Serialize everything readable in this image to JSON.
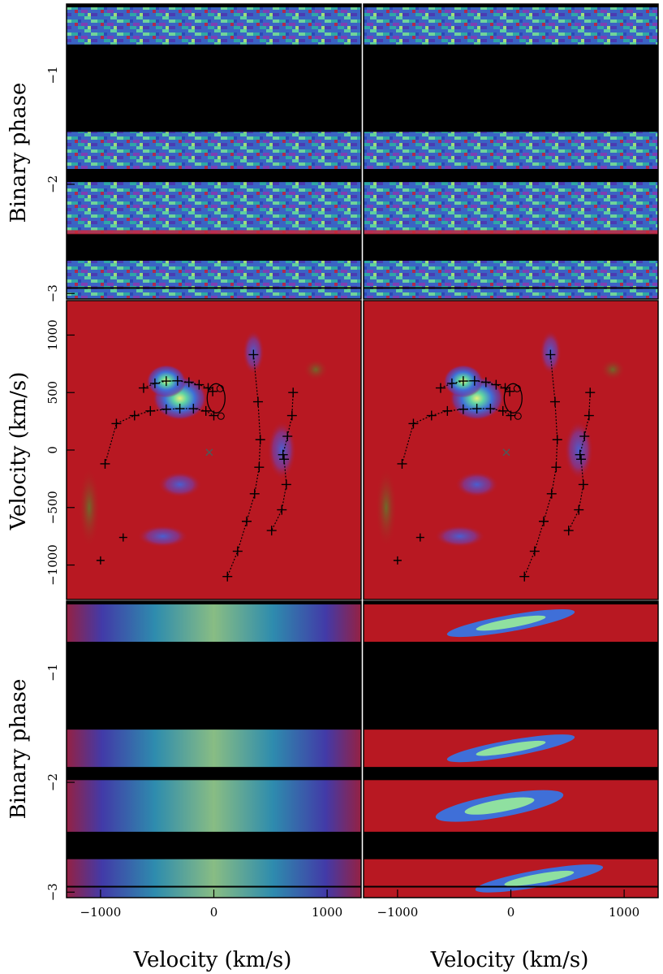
{
  "chart_data": {
    "type": "heatmap",
    "layout": "3 rows x 2 columns of panels",
    "panels": [
      {
        "id": "trailed-observed",
        "kind": "trailed spectra",
        "xlim": [
          -1300,
          1300
        ],
        "ylabel": "Binary phase",
        "yticks": [
          -1,
          -2,
          -3
        ],
        "ylim": [
          -3.05,
          -0.35
        ],
        "data_bands": [
          [
            -0.38,
            -0.72
          ],
          [
            -1.52,
            -1.86
          ],
          [
            -1.98,
            -2.45
          ],
          [
            -2.7,
            -3.05
          ]
        ],
        "colormap": "noise"
      },
      {
        "id": "trailed-observed-right",
        "kind": "trailed spectra",
        "xlim": [
          -1300,
          1300
        ],
        "ylim": [
          -3.05,
          -0.35
        ],
        "data_bands": [
          [
            -0.38,
            -0.72
          ],
          [
            -1.52,
            -1.86
          ],
          [
            -1.98,
            -2.45
          ],
          [
            -2.7,
            -3.05
          ]
        ],
        "colormap": "noise"
      },
      {
        "id": "doppler-map-left",
        "kind": "Doppler tomogram",
        "xlim": [
          -1300,
          1300
        ],
        "ylim": [
          -1300,
          1300
        ],
        "ylabel": "Velocity (km/s)",
        "yticks": [
          1000,
          500,
          0,
          -500,
          -1000
        ]
      },
      {
        "id": "doppler-map-right",
        "kind": "Doppler tomogram",
        "xlim": [
          -1300,
          1300
        ],
        "ylim": [
          -1300,
          1300
        ]
      },
      {
        "id": "trailed-model-left",
        "kind": "model trailed spectra",
        "xlim": [
          -1300,
          1300
        ],
        "ylim": [
          -3.05,
          -0.35
        ],
        "ylabel": "Binary phase",
        "yticks": [
          -1,
          -2,
          -3
        ]
      },
      {
        "id": "trailed-model-right",
        "kind": "model trailed spectra",
        "xlim": [
          -1300,
          1300
        ],
        "ylim": [
          -3.05,
          -0.35
        ]
      }
    ],
    "xticks": [
      -1000,
      0,
      1000
    ],
    "xlabel_left": "Velocity (km/s)",
    "xlabel_right": "Velocity (km/s)",
    "ylabel_top": "Binary phase",
    "ylabel_middle": "Velocity (km/s)",
    "ylabel_bottom": "Binary phase",
    "tick_labels": {
      "phase": [
        "−1",
        "−2",
        "−3"
      ],
      "velocity_y": [
        "1000",
        "500",
        "0",
        "−500",
        "−1000"
      ],
      "velocity_x": [
        "−1000",
        "0",
        "1000"
      ]
    },
    "trajectories": {
      "stream_upper": [
        [
          -620,
          540
        ],
        [
          -520,
          580
        ],
        [
          -420,
          600
        ],
        [
          -320,
          602
        ],
        [
          -220,
          590
        ],
        [
          -130,
          568
        ],
        [
          -50,
          540
        ],
        [
          -10,
          510
        ]
      ],
      "stream_lower": [
        [
          -1000,
          -960
        ],
        [
          -800,
          -760
        ],
        [
          -960,
          -120
        ],
        [
          -860,
          230
        ],
        [
          -700,
          300
        ],
        [
          -560,
          340
        ],
        [
          -420,
          355
        ],
        [
          -300,
          360
        ],
        [
          -180,
          360
        ],
        [
          -70,
          340
        ],
        [
          0,
          300
        ]
      ],
      "inner_arc": [
        [
          350,
          830
        ],
        [
          390,
          420
        ],
        [
          410,
          90
        ],
        [
          400,
          -150
        ],
        [
          360,
          -380
        ],
        [
          290,
          -620
        ],
        [
          210,
          -880
        ],
        [
          120,
          -1100
        ]
      ],
      "outer_arc": [
        [
          700,
          500
        ],
        [
          690,
          300
        ],
        [
          650,
          120
        ],
        [
          610,
          -40
        ],
        [
          620,
          -80
        ],
        [
          640,
          -300
        ],
        [
          600,
          -520
        ],
        [
          510,
          -700
        ]
      ],
      "primary_marker": [
        -40,
        -20
      ],
      "secondary_roche_center": [
        20,
        450
      ]
    },
    "colors": {
      "background": "#000000",
      "map_red": "#b81822",
      "noise_blue": "#3b5bc8",
      "noise_teal": "#1e9fa8"
    }
  }
}
